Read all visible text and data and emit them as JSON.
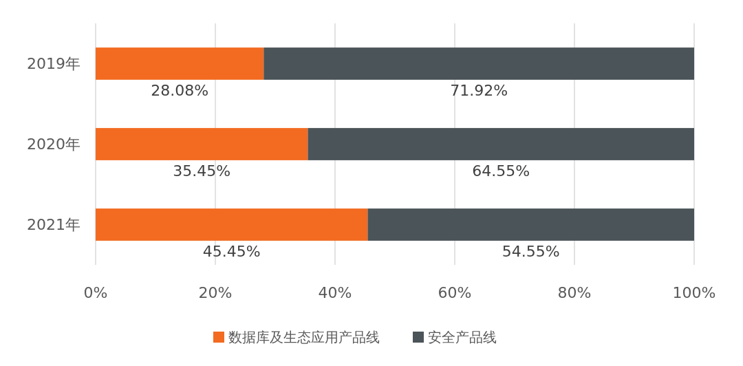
{
  "chart_data": {
    "type": "bar",
    "orientation": "horizontal",
    "stacked": true,
    "categories": [
      "2019年",
      "2020年",
      "2021年"
    ],
    "series": [
      {
        "name": "数据库及生态应用产品线",
        "color": "#f26b21",
        "values": [
          28.08,
          35.45,
          45.45
        ],
        "value_labels": [
          "28.08%",
          "35.45%",
          "45.45%"
        ]
      },
      {
        "name": "安全产品线",
        "color": "#4b5458",
        "values": [
          71.92,
          64.55,
          54.55
        ],
        "value_labels": [
          "71.92%",
          "64.55%",
          "54.55%"
        ]
      }
    ],
    "xlim": [
      0,
      100
    ],
    "xticks": [
      {
        "value": 0,
        "label": "0%"
      },
      {
        "value": 20,
        "label": "20%"
      },
      {
        "value": 40,
        "label": "40%"
      },
      {
        "value": 60,
        "label": "60%"
      },
      {
        "value": 80,
        "label": "80%"
      },
      {
        "value": 100,
        "label": "100%"
      }
    ],
    "grid": "x",
    "legend": "bottom"
  }
}
